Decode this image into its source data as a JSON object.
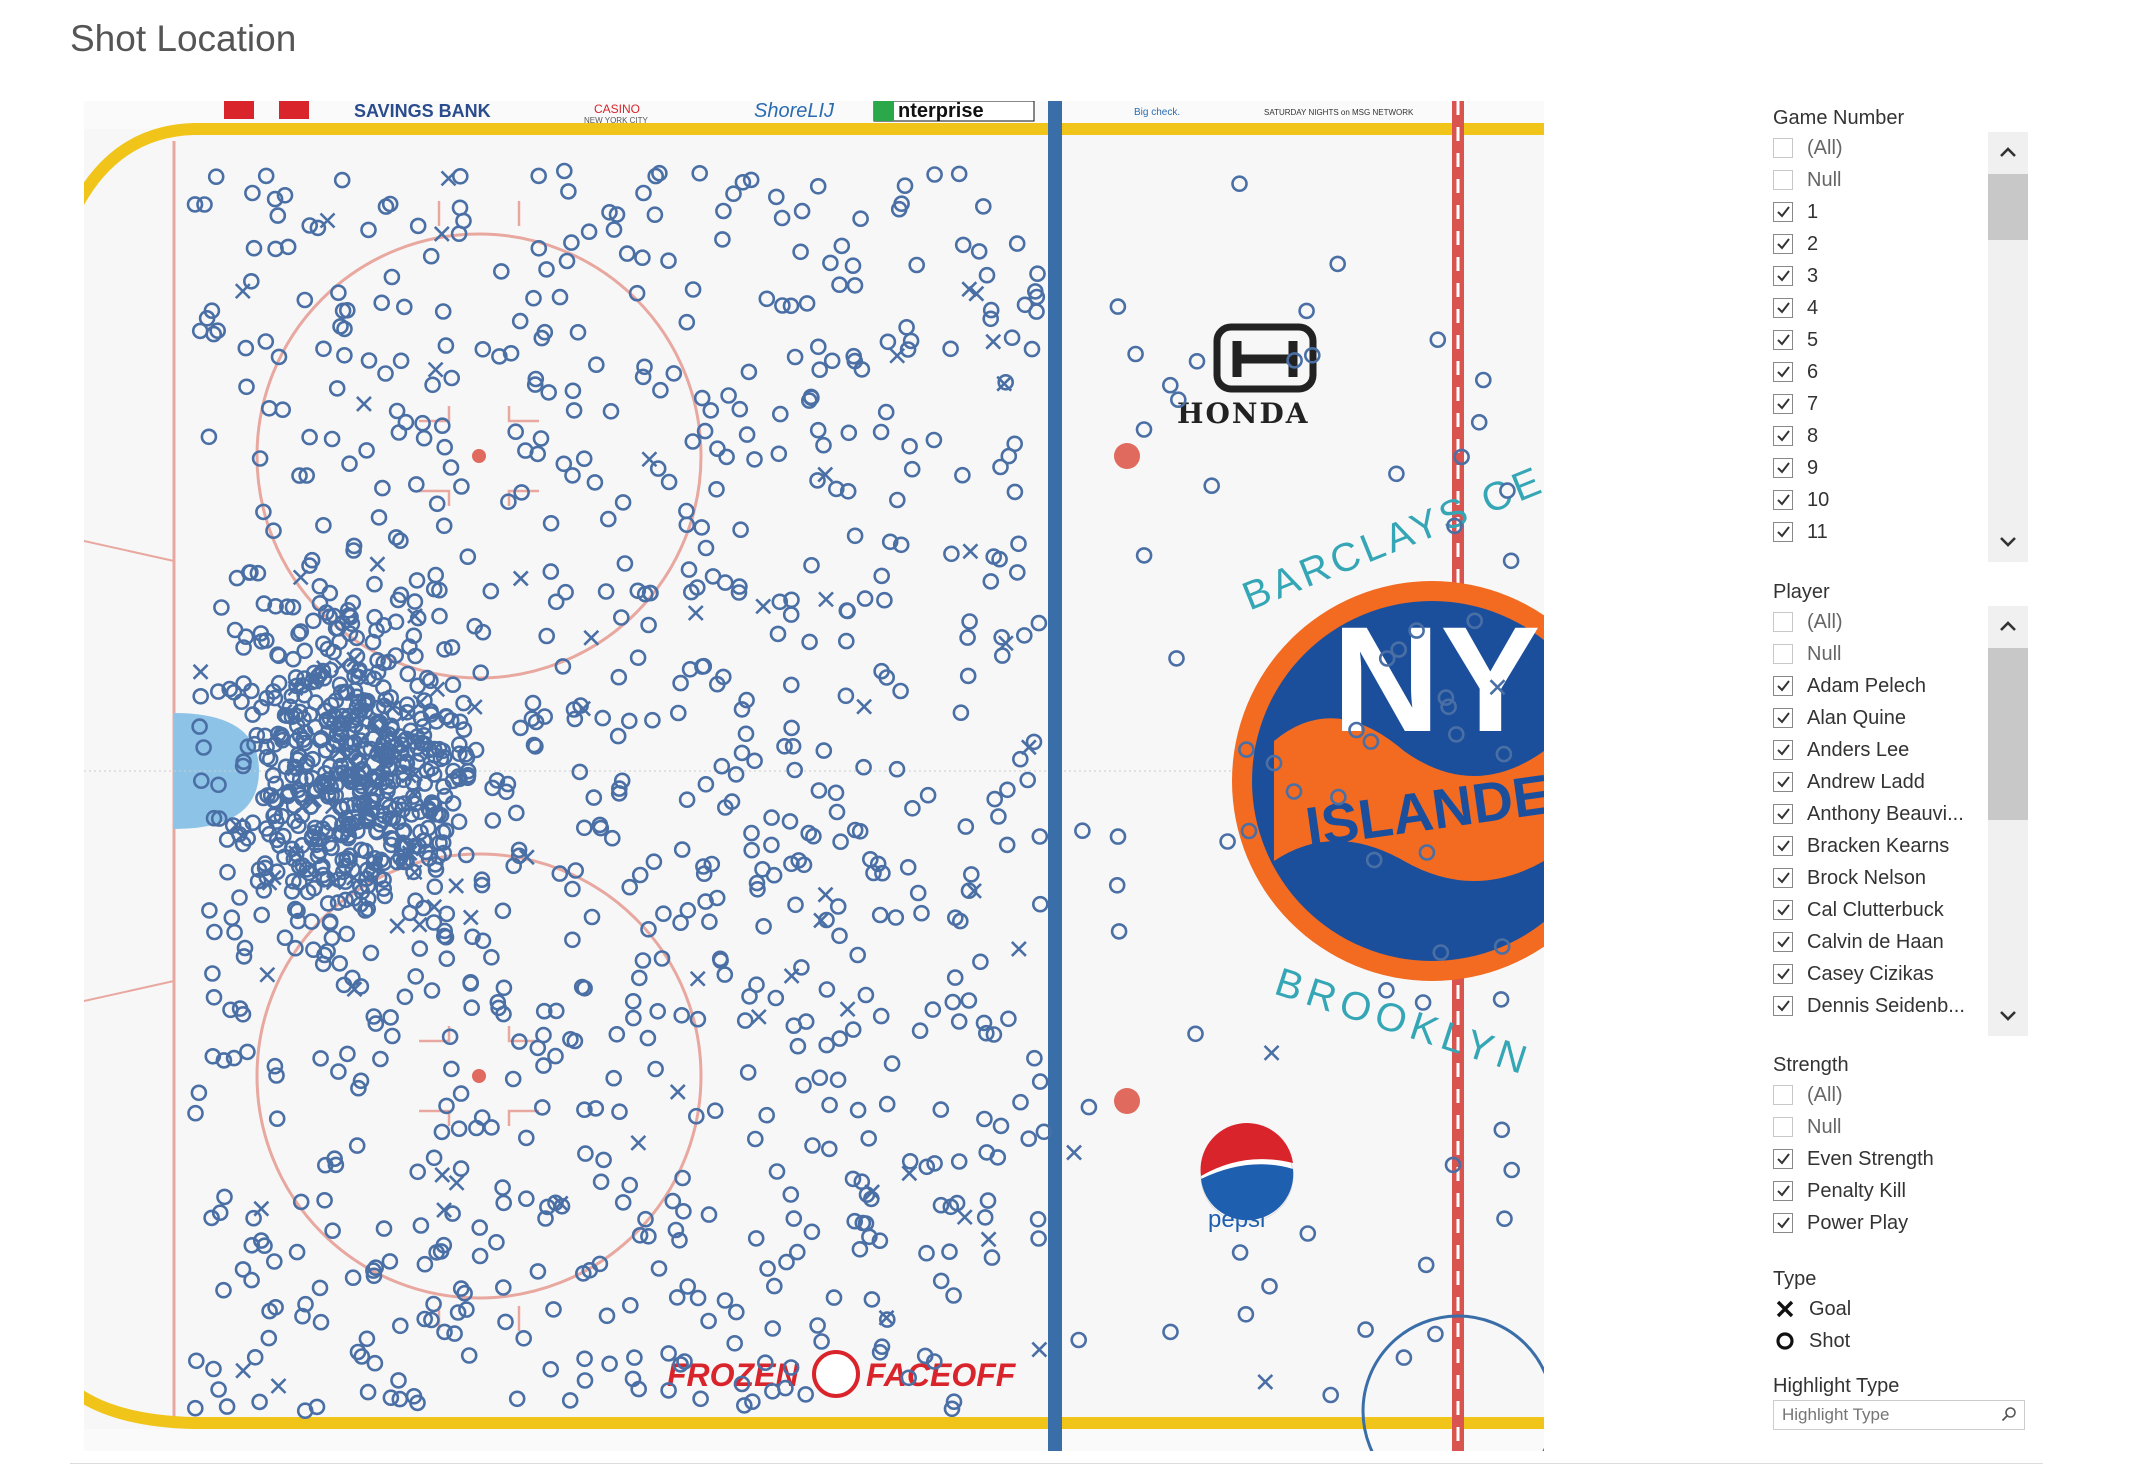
{
  "title": "Shot Location",
  "rink": {
    "ads_top": [
      "SAVINGS BANK",
      "CASINO",
      "NEW YORK CITY",
      "ShoreLIJ",
      "nterprise",
      "Big check.",
      "SATURDAY NIGHTS on MSG NETWORK"
    ],
    "ads_bottom": [
      "FROZEN",
      "FACEOFF"
    ],
    "sponsors": {
      "honda": "HONDA",
      "pepsi": "pepsi"
    },
    "logo": {
      "arc_top": "BARCLAYS CE",
      "arc_bottom": "BROOKLYN",
      "center": "NY",
      "band": "ISLANDERS"
    }
  },
  "filters": {
    "game_number": {
      "label": "Game Number",
      "items": [
        {
          "label": "(All)",
          "checked": false
        },
        {
          "label": "Null",
          "checked": false
        },
        {
          "label": "1",
          "checked": true
        },
        {
          "label": "2",
          "checked": true
        },
        {
          "label": "3",
          "checked": true
        },
        {
          "label": "4",
          "checked": true
        },
        {
          "label": "5",
          "checked": true
        },
        {
          "label": "6",
          "checked": true
        },
        {
          "label": "7",
          "checked": true
        },
        {
          "label": "8",
          "checked": true
        },
        {
          "label": "9",
          "checked": true
        },
        {
          "label": "10",
          "checked": true
        },
        {
          "label": "11",
          "checked": true
        }
      ]
    },
    "player": {
      "label": "Player",
      "items": [
        {
          "label": "(All)",
          "checked": false
        },
        {
          "label": "Null",
          "checked": false
        },
        {
          "label": "Adam Pelech",
          "checked": true
        },
        {
          "label": "Alan Quine",
          "checked": true
        },
        {
          "label": "Anders Lee",
          "checked": true
        },
        {
          "label": "Andrew Ladd",
          "checked": true
        },
        {
          "label": "Anthony Beauvi...",
          "checked": true
        },
        {
          "label": "Bracken Kearns",
          "checked": true
        },
        {
          "label": "Brock Nelson",
          "checked": true
        },
        {
          "label": "Cal Clutterbuck",
          "checked": true
        },
        {
          "label": "Calvin de Haan",
          "checked": true
        },
        {
          "label": "Casey Cizikas",
          "checked": true
        },
        {
          "label": "Dennis Seidenb...",
          "checked": true
        }
      ]
    },
    "strength": {
      "label": "Strength",
      "items": [
        {
          "label": "(All)",
          "checked": false
        },
        {
          "label": "Null",
          "checked": false
        },
        {
          "label": "Even Strength",
          "checked": true
        },
        {
          "label": "Penalty Kill",
          "checked": true
        },
        {
          "label": "Power Play",
          "checked": true
        }
      ]
    },
    "type_legend": {
      "label": "Type",
      "items": [
        {
          "label": "Goal",
          "icon": "x-mark-icon"
        },
        {
          "label": "Shot",
          "icon": "circle-mark-icon"
        }
      ]
    },
    "highlight": {
      "label": "Highlight Type",
      "placeholder": "Highlight Type"
    }
  },
  "colors": {
    "mark": "#4a6fa5",
    "blue_line": "#3a6ea8",
    "red_line": "#d9534f",
    "boards": "#f0c419"
  }
}
